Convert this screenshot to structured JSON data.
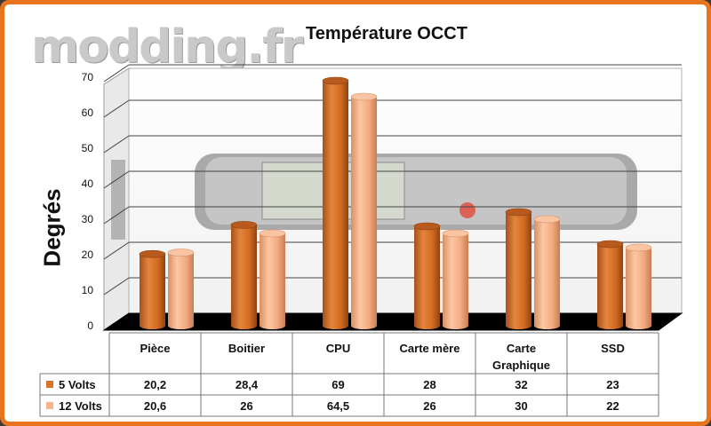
{
  "watermark": "modding.fr",
  "chart_data": {
    "type": "bar",
    "title": "Température OCCT",
    "ylabel": "Degrés",
    "xlabel": "",
    "ylim": [
      0,
      70
    ],
    "yticks": [
      0,
      10,
      20,
      30,
      40,
      50,
      60,
      70
    ],
    "categories": [
      "Pièce",
      "Boitier",
      "CPU",
      "Carte mère",
      "Carte Graphique",
      "SSD"
    ],
    "category_lines": [
      [
        "Pièce"
      ],
      [
        "Boitier"
      ],
      [
        "CPU"
      ],
      [
        "Carte mère"
      ],
      [
        "Carte",
        "Graphique"
      ],
      [
        "SSD"
      ]
    ],
    "series": [
      {
        "name": "5 Volts",
        "color": "#d9732a",
        "values": [
          20.2,
          28.4,
          69,
          28,
          32,
          23
        ],
        "labels": [
          "20,2",
          "28,4",
          "69",
          "28",
          "32",
          "23"
        ]
      },
      {
        "name": "12 Volts",
        "color": "#f6b48a",
        "values": [
          20.6,
          26,
          64.5,
          26,
          30,
          22
        ],
        "labels": [
          "20,6",
          "26",
          "64,5",
          "26",
          "30",
          "22"
        ]
      }
    ],
    "legend": "table",
    "grid": true
  }
}
